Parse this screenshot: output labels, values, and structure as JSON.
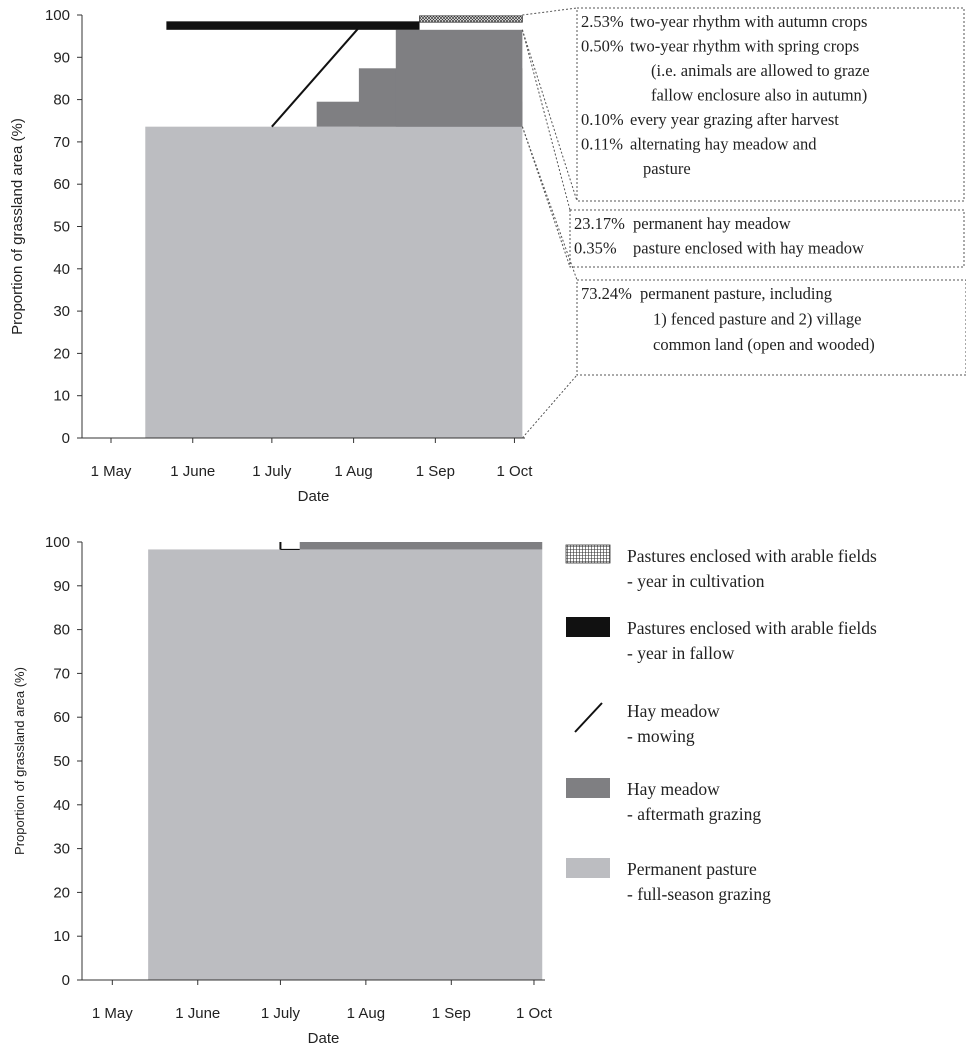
{
  "chart_data": [
    {
      "type": "area",
      "xlabel": "Date",
      "ylabel": "Proportion of grassland area (%)",
      "x_ticks": [
        "1 May",
        "1 June",
        "1 July",
        "1 Aug",
        "1 Sep",
        "1 Oct"
      ],
      "x_tick_dates": [
        "05-01",
        "06-01",
        "07-01",
        "08-01",
        "09-01",
        "10-01"
      ],
      "y_ticks": [
        0,
        10,
        20,
        30,
        40,
        50,
        60,
        70,
        80,
        90,
        100
      ],
      "ylim": [
        0,
        100
      ],
      "xlim": [
        "04-20",
        "10-05"
      ],
      "series": [
        {
          "key": "permanent_pasture",
          "from": "05-14",
          "to": "10-04",
          "bottom": 0,
          "top": 73.6
        },
        {
          "key": "aftermath",
          "steps": [
            {
              "from": "07-18",
              "to": "10-04",
              "bottom": 73.6,
              "top": 79.5
            },
            {
              "from": "08-03",
              "to": "10-04",
              "bottom": 73.6,
              "top": 87.4
            },
            {
              "from": "08-17",
              "to": "10-04",
              "bottom": 73.6,
              "top": 96.5
            }
          ]
        },
        {
          "key": "mowing",
          "points": [
            [
              "07-01",
              73.6
            ],
            [
              "08-03",
              97.0
            ]
          ]
        },
        {
          "key": "fallow",
          "from": "05-22",
          "to": "08-26",
          "bottom": 96.5,
          "top": 98.5
        },
        {
          "key": "cultivation",
          "from": "08-26",
          "to": "10-04",
          "bottom": 98.3,
          "top": 99.8
        }
      ],
      "annotations": [
        {
          "lines": [
            {
              "pct": "2.53%",
              "text": "two-year rhythm with autumn crops"
            },
            {
              "pct": "0.50%",
              "text": "two-year rhythm with spring crops"
            },
            {
              "pct": "",
              "text": "(i.e. animals are allowed to graze"
            },
            {
              "pct": "",
              "text": "fallow enclosure also in autumn)"
            },
            {
              "pct": "0.10%",
              "text": "every year grazing after harvest"
            },
            {
              "pct": "0.11%",
              "text": "alternating hay meadow and"
            },
            {
              "pct": "",
              "text": "pasture"
            }
          ]
        },
        {
          "lines": [
            {
              "pct": "23.17%",
              "text": "permanent hay meadow"
            },
            {
              "pct": "0.35%",
              "text": "pasture enclosed with hay meadow"
            }
          ]
        },
        {
          "lines": [
            {
              "pct": "73.24%",
              "text": "permanent pasture, including"
            },
            {
              "pct": "",
              "text": "1) fenced pasture and 2) village"
            },
            {
              "pct": "",
              "text": "common land (open and wooded)"
            }
          ]
        }
      ]
    },
    {
      "type": "area",
      "xlabel": "Date",
      "ylabel": "Proportion of grassland area (%)",
      "x_ticks": [
        "1 May",
        "1 June",
        "1 July",
        "1 Aug",
        "1 Sep",
        "1 Oct"
      ],
      "x_tick_dates": [
        "05-01",
        "06-01",
        "07-01",
        "08-01",
        "09-01",
        "10-01"
      ],
      "y_ticks": [
        0,
        10,
        20,
        30,
        40,
        50,
        60,
        70,
        80,
        90,
        100
      ],
      "ylim": [
        0,
        100
      ],
      "xlim": [
        "04-20",
        "10-05"
      ],
      "series": [
        {
          "key": "permanent_pasture",
          "from": "05-14",
          "to": "10-04",
          "bottom": 0,
          "top": 98.3
        },
        {
          "key": "aftermath",
          "from": "07-08",
          "to": "10-04",
          "bottom": 98.3,
          "top": 100
        },
        {
          "key": "mowing",
          "points": [
            [
              "07-01",
              98.3
            ],
            [
              "07-01",
              100
            ]
          ]
        }
      ]
    }
  ],
  "legend": [
    {
      "key": "cultivation",
      "line1": "Pastures enclosed with arable fields",
      "line2": "- year in cultivation"
    },
    {
      "key": "fallow",
      "line1": "Pastures enclosed with arable fields",
      "line2": "- year in fallow"
    },
    {
      "key": "mowing",
      "line1": "Hay meadow",
      "line2": "- mowing"
    },
    {
      "key": "aftermath",
      "line1": "Hay meadow",
      "line2": "- aftermath grazing"
    },
    {
      "key": "permanent_pasture",
      "line1": "Permanent pasture",
      "line2": "- full-season grazing"
    }
  ],
  "colors": {
    "permanent_pasture": "#bcbdc1",
    "aftermath": "#7f7f82",
    "fallow": "#111111",
    "mowing": "#111111",
    "cultivation_bg": "#ffffff",
    "cultivation_ink": "#333333"
  }
}
